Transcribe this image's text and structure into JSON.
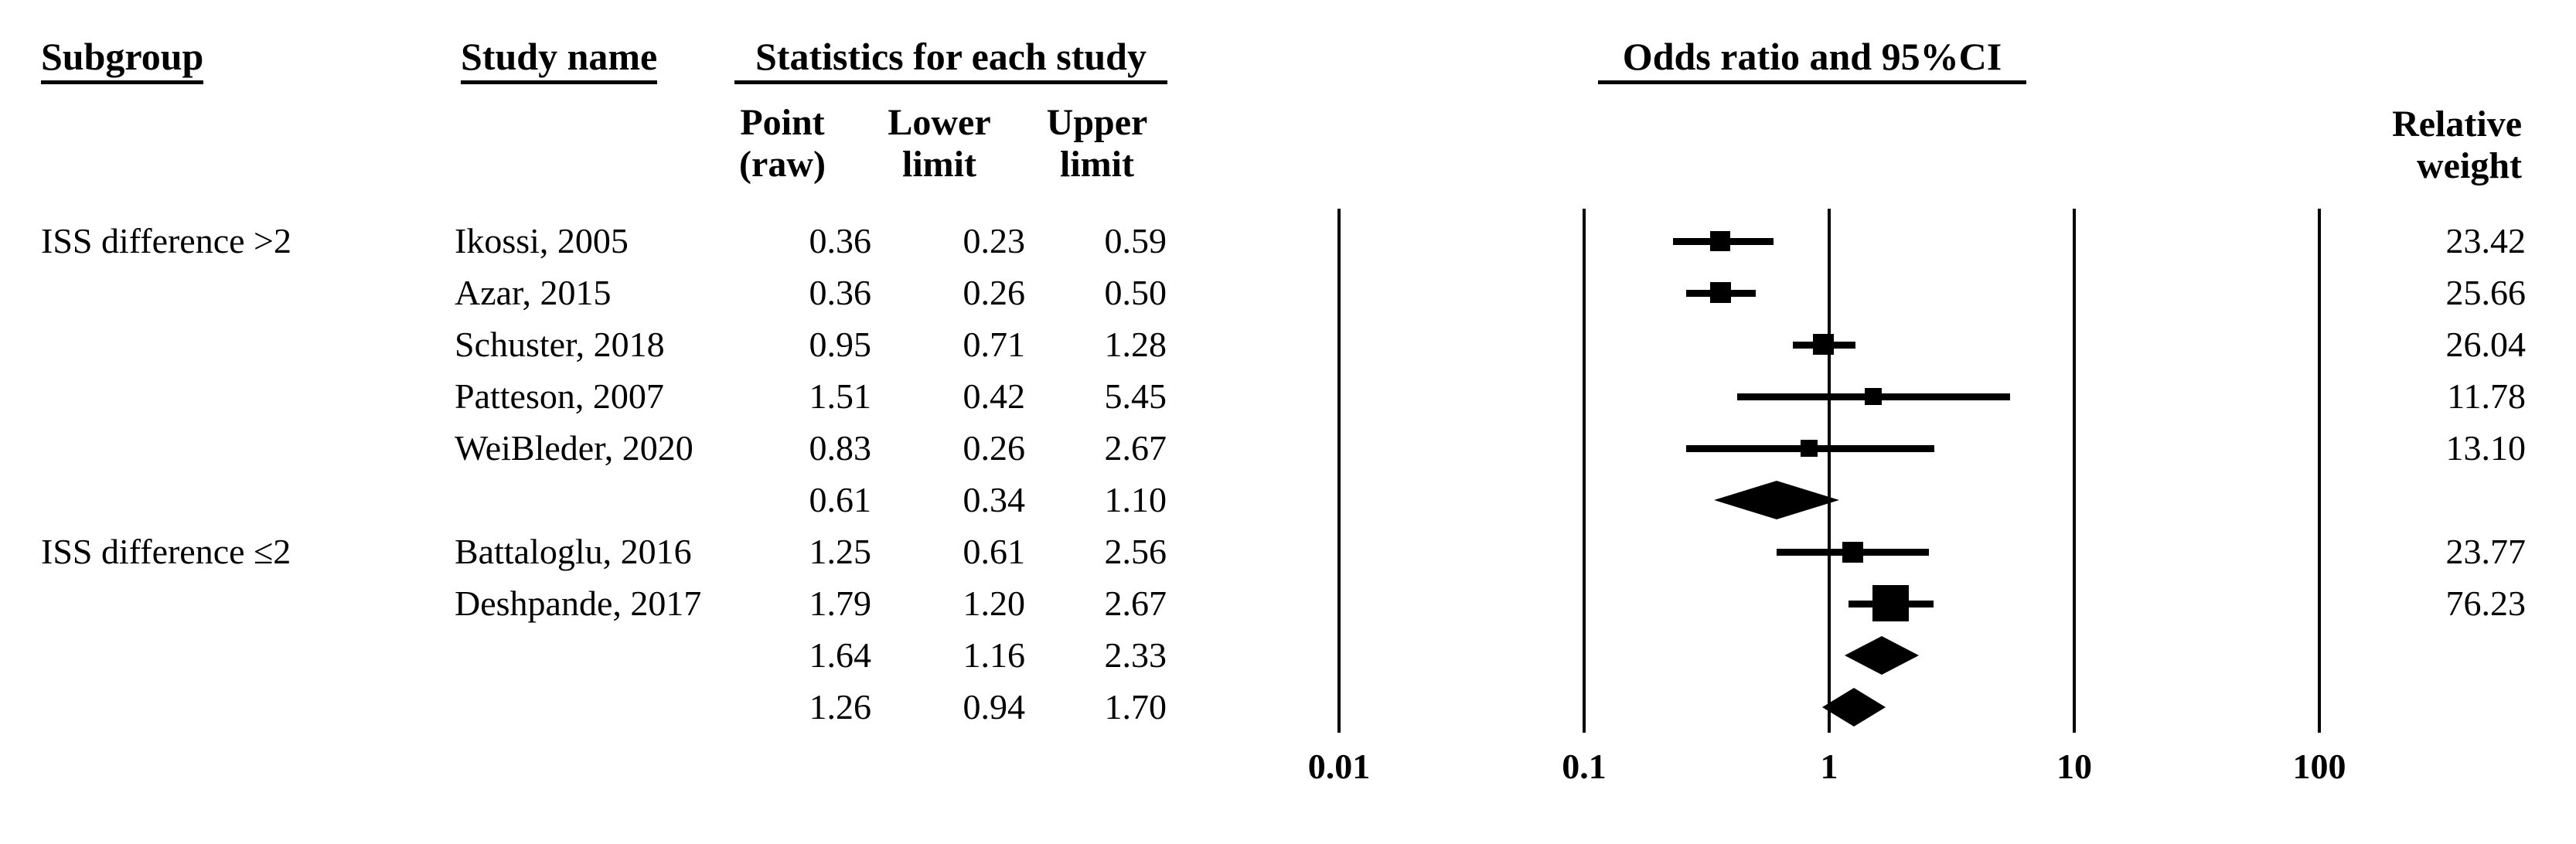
{
  "headers": {
    "subgroup": "Subgroup",
    "study_name": "Study name",
    "statistics": "Statistics for each study",
    "point_line1": "Point",
    "point_line2": "(raw)",
    "lower_line1": "Lower",
    "lower_line2": "limit",
    "upper_line1": "Upper",
    "upper_line2": "limit",
    "odds_ratio_title": "Odds ratio and 95%CI",
    "relative_line1": "Relative",
    "relative_line2": "weight"
  },
  "colors": {
    "ink": "#000000",
    "background": "#ffffff"
  },
  "chart_data": {
    "type": "forest",
    "title": "Odds ratio and 95%CI",
    "x_axis": {
      "scale": "log10",
      "min": 0.01,
      "max": 100,
      "ticks": [
        "0.01",
        "0.1",
        "1",
        "10",
        "100"
      ],
      "grid": "vertical-lines-at-ticks"
    },
    "legend_position": "none",
    "rows": [
      {
        "kind": "study",
        "subgroup": "ISS difference >2",
        "study": "Ikossi, 2005",
        "point": "0.36",
        "lower": "0.23",
        "upper": "0.59",
        "weight": "23.42"
      },
      {
        "kind": "study",
        "subgroup": "",
        "study": "Azar, 2015",
        "point": "0.36",
        "lower": "0.26",
        "upper": "0.50",
        "weight": "25.66"
      },
      {
        "kind": "study",
        "subgroup": "",
        "study": "Schuster, 2018",
        "point": "0.95",
        "lower": "0.71",
        "upper": "1.28",
        "weight": "26.04"
      },
      {
        "kind": "study",
        "subgroup": "",
        "study": "Patteson, 2007",
        "point": "1.51",
        "lower": "0.42",
        "upper": "5.45",
        "weight": "11.78"
      },
      {
        "kind": "study",
        "subgroup": "",
        "study": "WeiBleder, 2020",
        "point": "0.83",
        "lower": "0.26",
        "upper": "2.67",
        "weight": "13.10"
      },
      {
        "kind": "subgroup_summary",
        "subgroup": "",
        "study": "",
        "point": "0.61",
        "lower": "0.34",
        "upper": "1.10",
        "weight": ""
      },
      {
        "kind": "study",
        "subgroup": "ISS difference ≤2",
        "study": "Battaloglu, 2016",
        "point": "1.25",
        "lower": "0.61",
        "upper": "2.56",
        "weight": "23.77"
      },
      {
        "kind": "study",
        "subgroup": "",
        "study": "Deshpande, 2017",
        "point": "1.79",
        "lower": "1.20",
        "upper": "2.67",
        "weight": "76.23"
      },
      {
        "kind": "subgroup_summary",
        "subgroup": "",
        "study": "",
        "point": "1.64",
        "lower": "1.16",
        "upper": "2.33",
        "weight": ""
      },
      {
        "kind": "overall_summary",
        "subgroup": "",
        "study": "",
        "point": "1.26",
        "lower": "0.94",
        "upper": "1.70",
        "weight": ""
      }
    ]
  }
}
